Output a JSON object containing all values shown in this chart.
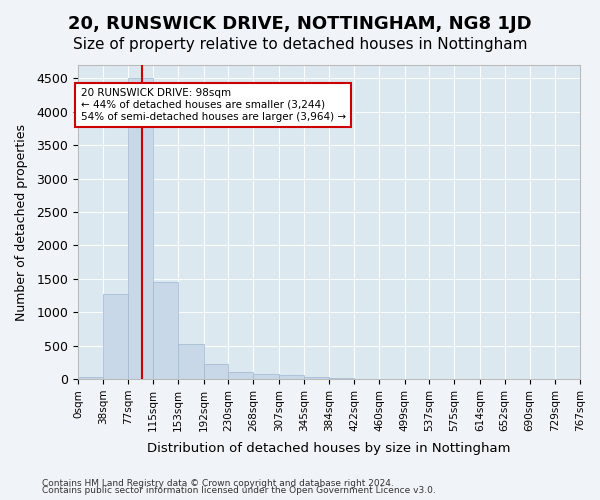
{
  "title": "20, RUNSWICK DRIVE, NOTTINGHAM, NG8 1JD",
  "subtitle": "Size of property relative to detached houses in Nottingham",
  "xlabel": "Distribution of detached houses by size in Nottingham",
  "ylabel": "Number of detached properties",
  "footnote1": "Contains HM Land Registry data © Crown copyright and database right 2024.",
  "footnote2": "Contains public sector information licensed under the Open Government Licence v3.0.",
  "bar_edges": [
    0,
    38,
    77,
    115,
    153,
    192,
    230,
    268,
    307,
    345,
    384,
    422,
    460,
    499,
    537,
    575,
    614,
    652,
    690,
    729,
    767
  ],
  "bar_heights": [
    30,
    1270,
    4500,
    1450,
    520,
    220,
    110,
    75,
    55,
    30,
    10,
    5,
    3,
    0,
    0,
    2,
    0,
    0,
    0,
    0
  ],
  "bar_color": "#c8d8e8",
  "bar_edgecolor": "#a0b8d0",
  "property_size": 98,
  "red_line_color": "#cc0000",
  "ylim": [
    0,
    4700
  ],
  "yticks": [
    0,
    500,
    1000,
    1500,
    2000,
    2500,
    3000,
    3500,
    4000,
    4500
  ],
  "annotation_text": "20 RUNSWICK DRIVE: 98sqm\n← 44% of detached houses are smaller (3,244)\n54% of semi-detached houses are larger (3,964) →",
  "annotation_box_color": "#ffffff",
  "annotation_box_edgecolor": "#cc0000",
  "plot_bg_color": "#dce8f0",
  "fig_bg_color": "#f0f4f8",
  "title_fontsize": 13,
  "subtitle_fontsize": 11,
  "tick_label_fontsize": 7.5
}
